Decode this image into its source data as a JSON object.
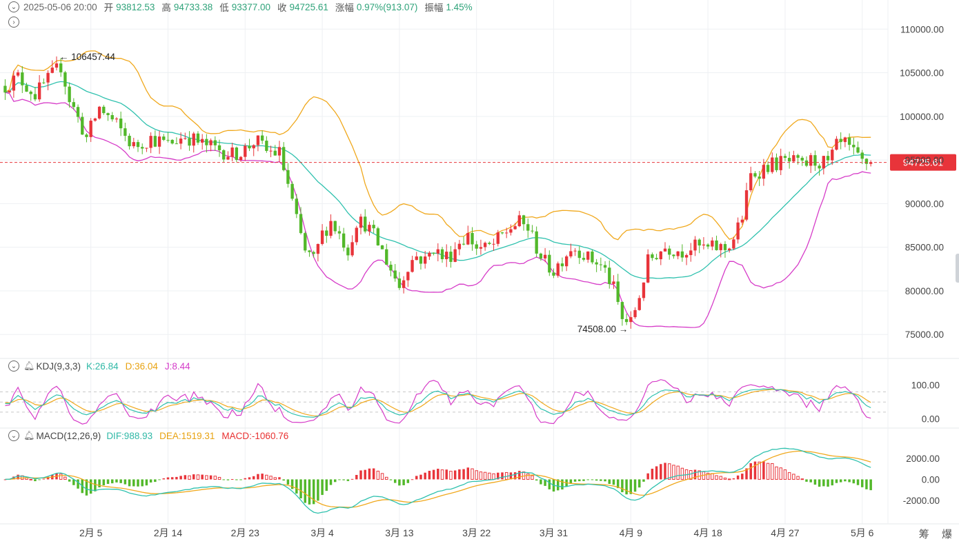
{
  "header": {
    "datetime": "2025-05-06 20:00",
    "open_label": "开",
    "open_value": "93812.53",
    "high_label": "高",
    "high_value": "94733.38",
    "low_label": "低",
    "low_value": "93377.00",
    "close_label": "收",
    "close_value": "94725.61",
    "change_label": "涨幅",
    "change_value": "0.97%(913.07)",
    "amplitude_label": "振幅",
    "amplitude_value": "1.45%"
  },
  "icons": {
    "collapse": "chevron-down-icon",
    "expand": "chevron-right-icon",
    "alert": "bell-icon"
  },
  "kdj_header": {
    "name": "KDJ(9,3,3)",
    "k": "K:26.84",
    "d": "D:36.04",
    "j": "J:8.44"
  },
  "macd_header": {
    "name": "MACD(12,26,9)",
    "dif": "DIF:988.93",
    "dea": "DEA:1519.31",
    "macd": "MACD:-1060.76"
  },
  "toolbar": {
    "tool1": "筹",
    "tool2": "爆"
  },
  "colors": {
    "up": "#e8343a",
    "down": "#52b82a",
    "mid": "#2fc1ae",
    "upper": "#f0a81c",
    "lower": "#d63bc8",
    "k": "#2fc1ae",
    "d": "#f0a81c",
    "j": "#d63bc8",
    "dif": "#2fc1ae",
    "dea": "#f0a81c",
    "price_tag": "#e8343a"
  },
  "chart_data": {
    "type": "candlestick",
    "price_axis": {
      "ticks": [
        "110000.00",
        "105000.00",
        "100000.00",
        "95000.00",
        "90000.00",
        "85000.00",
        "80000.00",
        "75000.00"
      ],
      "range": [
        73200,
        111600
      ]
    },
    "current_price": "94725.61",
    "high_annotation": "106457.44",
    "low_annotation": "74508.00",
    "x_labels": [
      "2月 5",
      "2月 14",
      "2月 23",
      "3月 4",
      "3月 13",
      "3月 22",
      "3月 31",
      "4月 9",
      "4月 18",
      "4月 27",
      "5月 6"
    ],
    "x_label_days": [
      7,
      16,
      25,
      34,
      43,
      52,
      61,
      70,
      79,
      88,
      97
    ],
    "x_range_days": [
      -3.6,
      100
    ],
    "price_anchors": [
      [
        -3,
        103500
      ],
      [
        -1.5,
        104500
      ],
      [
        0.5,
        102500
      ],
      [
        2,
        104200
      ],
      [
        3.5,
        105800
      ],
      [
        4.5,
        102000
      ],
      [
        6.5,
        97500
      ],
      [
        8,
        101000
      ],
      [
        10,
        99000
      ],
      [
        12,
        96500
      ],
      [
        14,
        97500
      ],
      [
        16,
        96800
      ],
      [
        18,
        97800
      ],
      [
        20,
        96800
      ],
      [
        22,
        96200
      ],
      [
        23.5,
        95600
      ],
      [
        25,
        96200
      ],
      [
        26.2,
        97300
      ],
      [
        27.5,
        96000
      ],
      [
        29,
        95800
      ],
      [
        30,
        92200
      ],
      [
        31,
        88000
      ],
      [
        32,
        84500
      ],
      [
        33,
        83500
      ],
      [
        34,
        86500
      ],
      [
        35,
        88000
      ],
      [
        36,
        86500
      ],
      [
        37,
        84700
      ],
      [
        38,
        88000
      ],
      [
        39,
        87700
      ],
      [
        40,
        86300
      ],
      [
        41,
        84500
      ],
      [
        42,
        82500
      ],
      [
        43,
        80500
      ],
      [
        44,
        83000
      ],
      [
        45,
        84000
      ],
      [
        46,
        83400
      ],
      [
        47,
        85000
      ],
      [
        48,
        83800
      ],
      [
        49,
        84200
      ],
      [
        50,
        85700
      ],
      [
        51,
        86300
      ],
      [
        52,
        85000
      ],
      [
        53,
        84800
      ],
      [
        54,
        85300
      ],
      [
        55,
        86300
      ],
      [
        56,
        87300
      ],
      [
        57,
        87800
      ],
      [
        58,
        87200
      ],
      [
        59,
        85000
      ],
      [
        60,
        83200
      ],
      [
        61,
        82300
      ],
      [
        62,
        83700
      ],
      [
        63,
        85000
      ],
      [
        64,
        84700
      ],
      [
        65,
        83700
      ],
      [
        66,
        83300
      ],
      [
        67,
        82300
      ],
      [
        68,
        80200
      ],
      [
        69,
        76700
      ],
      [
        70,
        76300
      ],
      [
        71,
        79500
      ],
      [
        72,
        83300
      ],
      [
        73,
        84300
      ],
      [
        74,
        85000
      ],
      [
        75,
        84800
      ],
      [
        76,
        84600
      ],
      [
        77,
        85000
      ],
      [
        78,
        85000
      ],
      [
        79,
        84800
      ],
      [
        80,
        85000
      ],
      [
        81,
        84800
      ],
      [
        82,
        86000
      ],
      [
        83,
        88500
      ],
      [
        84,
        93200
      ],
      [
        85,
        93800
      ],
      [
        86,
        94400
      ],
      [
        87,
        94600
      ],
      [
        88,
        94800
      ],
      [
        89,
        94700
      ],
      [
        90,
        94200
      ],
      [
        91,
        94900
      ],
      [
        92,
        94800
      ],
      [
        93,
        94500
      ],
      [
        94,
        96500
      ],
      [
        95,
        96800
      ],
      [
        96,
        95600
      ],
      [
        97,
        94700
      ],
      [
        98,
        94725.61
      ]
    ],
    "kdj": {
      "axis_ticks": [
        "100.00",
        "0.00"
      ],
      "range": [
        -17,
        126
      ]
    },
    "macd": {
      "axis_ticks": [
        "2000.00",
        "0.00",
        "-2000.00"
      ],
      "range": [
        -3700,
        3300
      ]
    }
  }
}
